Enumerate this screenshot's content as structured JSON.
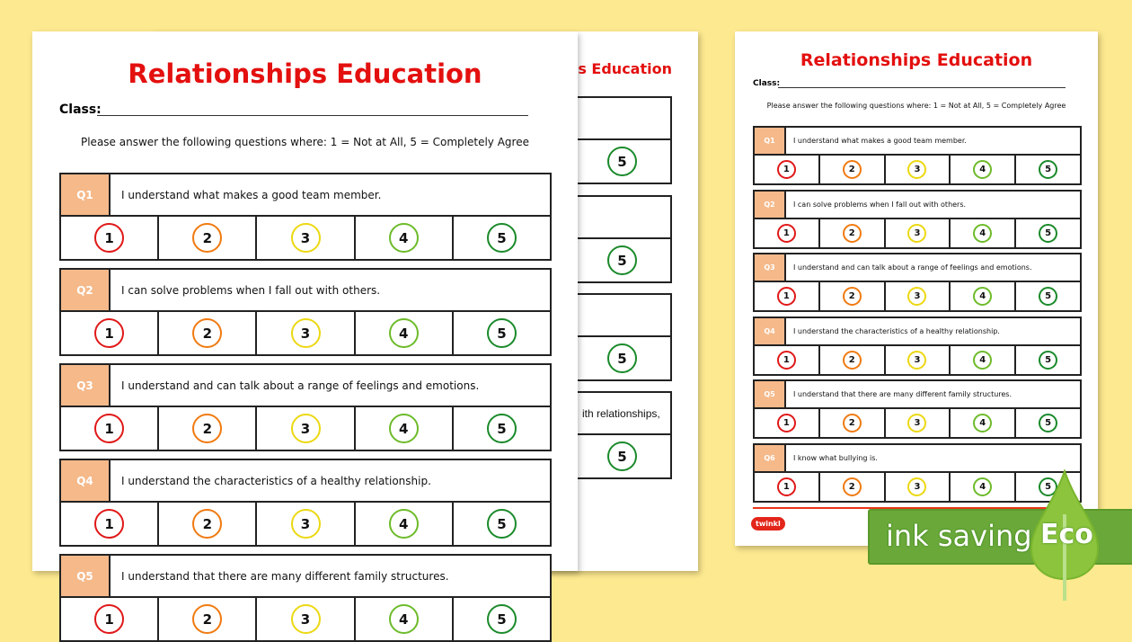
{
  "worksheet": {
    "title": "Relationships Education",
    "class_label": "Class:",
    "instruction": "Please answer the following questions where: 1 = Not at All, 5 = Completely Agree",
    "questions": [
      {
        "label": "Q1",
        "text": "I understand what makes a good team member."
      },
      {
        "label": "Q2",
        "text": "I can solve problems when I fall out with others."
      },
      {
        "label": "Q3",
        "text": "I understand and can talk about a range of feelings and emotions."
      },
      {
        "label": "Q4",
        "text": "I understand the characteristics of a healthy relationship."
      },
      {
        "label": "Q5",
        "text": "I understand that there are many different family structures."
      },
      {
        "label": "Q6",
        "text": "I know what bullying is."
      }
    ],
    "ratings": [
      "1",
      "2",
      "3",
      "4",
      "5"
    ],
    "rating_colors": [
      "#e01818",
      "#f07a10",
      "#ecd812",
      "#6dbb2a",
      "#1a8a2a"
    ],
    "label_color": "#f5b98a",
    "title_color": "#e3100f"
  },
  "middle_page": {
    "title_fragment": "ips Education",
    "q4_fragment": "ith relationships,",
    "rating": "5"
  },
  "logo": "twinkl",
  "badge": {
    "text": "ink saving",
    "eco": "Eco",
    "color": "#6aa83a"
  }
}
